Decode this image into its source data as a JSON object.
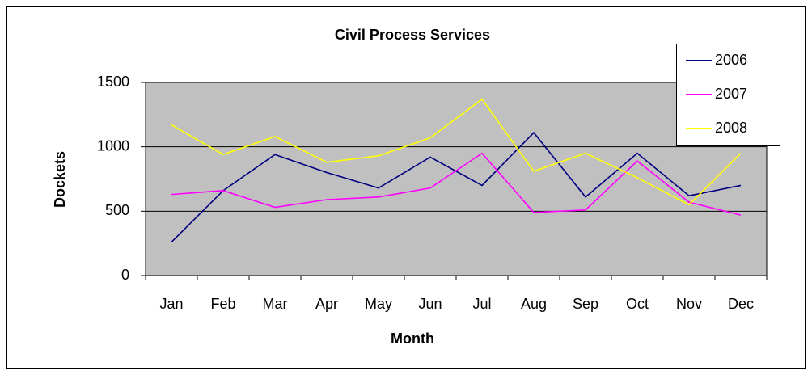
{
  "chart_data": {
    "type": "line",
    "title": "Civil Process Services",
    "x_label": "Month",
    "y_label": "Dockets",
    "categories": [
      "Jan",
      "Feb",
      "Mar",
      "Apr",
      "May",
      "Jun",
      "Jul",
      "Aug",
      "Sep",
      "Oct",
      "Nov",
      "Dec"
    ],
    "series": [
      {
        "name": "2006",
        "color": "#000080",
        "values": [
          260,
          660,
          940,
          800,
          680,
          920,
          700,
          1110,
          610,
          950,
          620,
          700
        ]
      },
      {
        "name": "2007",
        "color": "#ff00ff",
        "values": [
          630,
          660,
          530,
          590,
          610,
          680,
          950,
          490,
          510,
          890,
          570,
          470
        ]
      },
      {
        "name": "2008",
        "color": "#ffff00",
        "values": [
          1170,
          940,
          1080,
          880,
          930,
          1070,
          1370,
          810,
          950,
          760,
          550,
          950
        ]
      }
    ],
    "ylim": [
      0,
      1500
    ],
    "yticks": [
      0,
      500,
      1000,
      1500
    ],
    "grid": true,
    "legend": "right",
    "plot_background": "#c0c0c0"
  }
}
